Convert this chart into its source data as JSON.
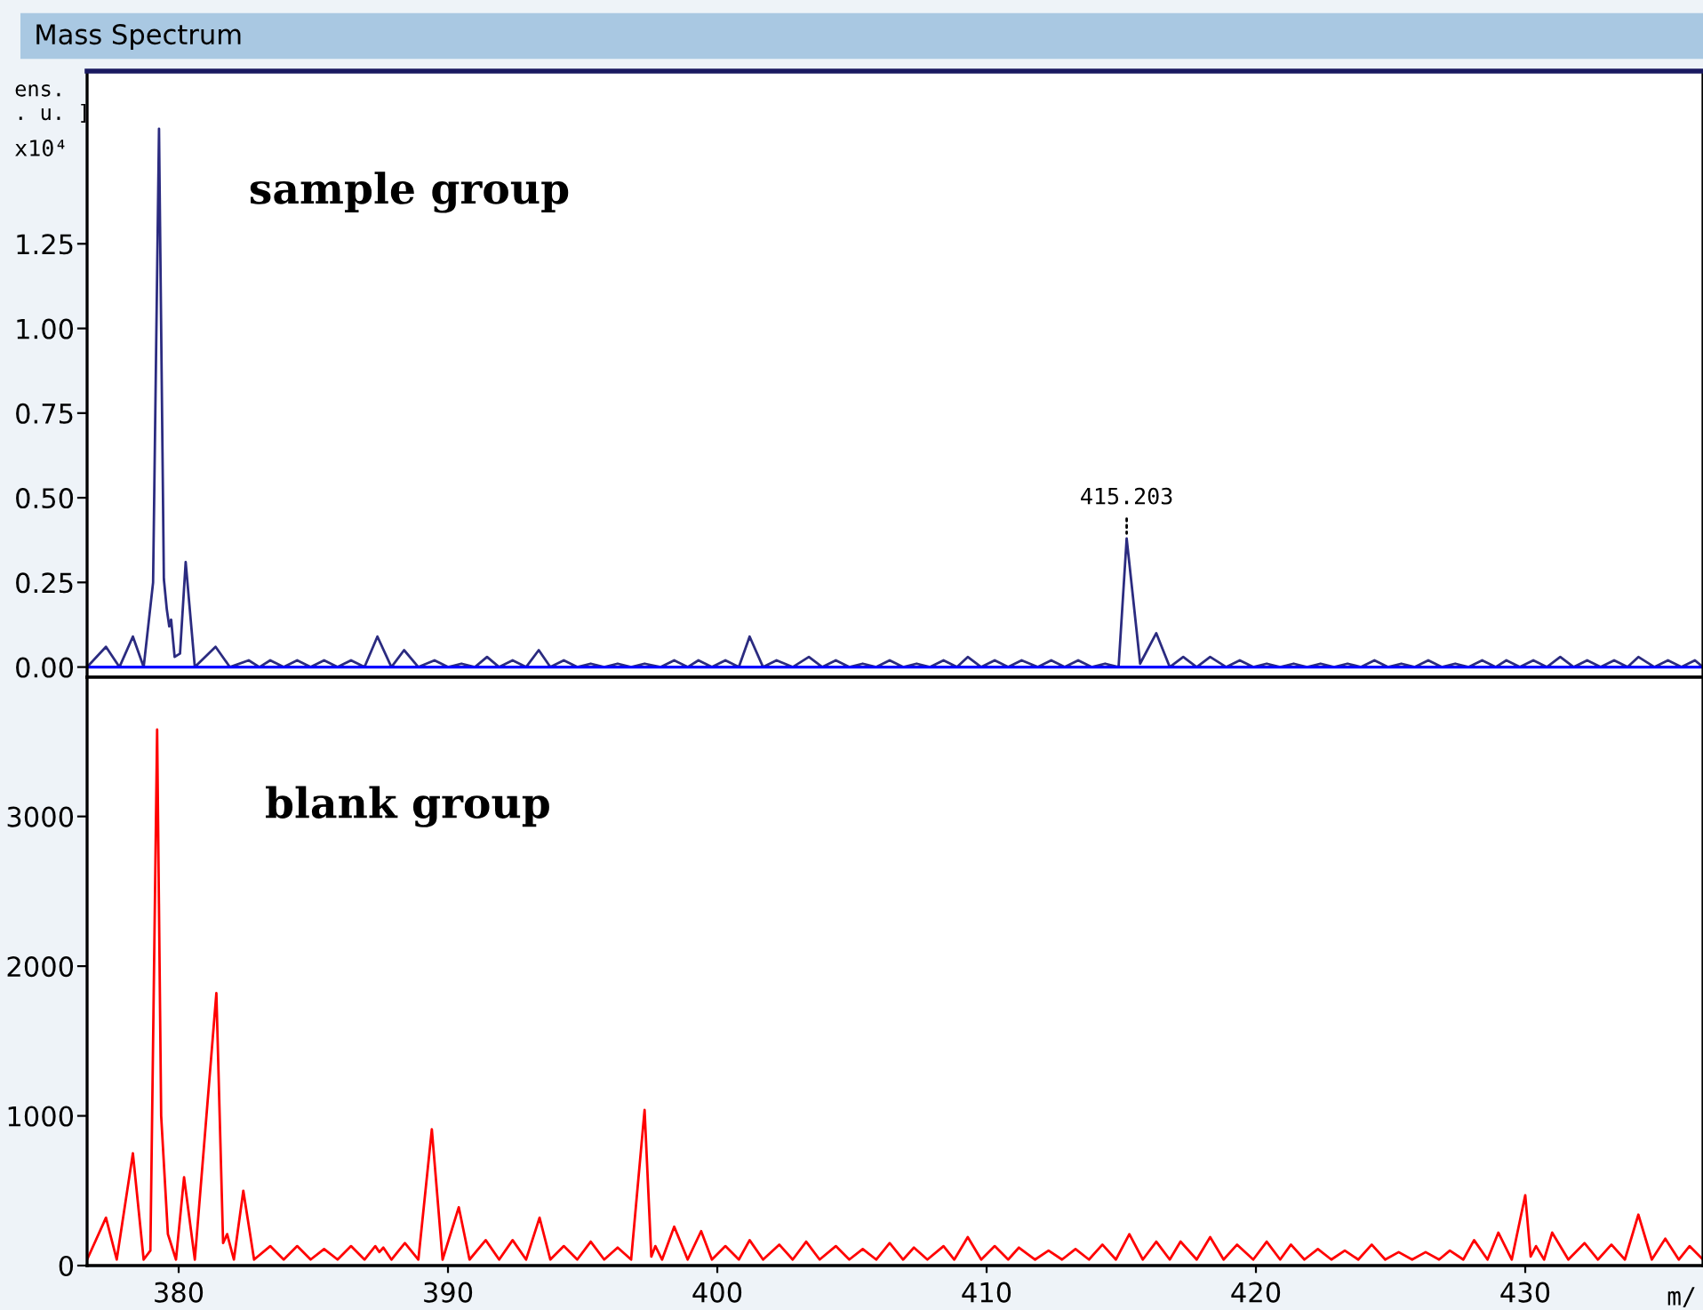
{
  "chart_data": [
    {
      "type": "line",
      "title": "Mass Spectrum",
      "ylabel": "ens.\n. u. ]",
      "annotations": [
        "sample group",
        "x10⁴",
        {
          "text": "415.203",
          "x": 415.2,
          "y": 0.38
        }
      ],
      "xlim": [
        376.6,
        436.6
      ],
      "ylim": [
        -0.03,
        1.76
      ],
      "yticks": [
        {
          "value": 0,
          "label": "0.00"
        },
        {
          "value": 0.25,
          "label": "0.25"
        },
        {
          "value": 0.5,
          "label": "0.50"
        },
        {
          "value": 0.75,
          "label": "0.75"
        },
        {
          "value": 1,
          "label": "1.00"
        },
        {
          "value": 1.25,
          "label": "1.25"
        }
      ],
      "tick_labels": "y",
      "grid": false,
      "legend": false,
      "ref_lines": [
        {
          "axis": "y",
          "value": 0,
          "color": "#0000ff"
        }
      ],
      "series": [
        {
          "color": "#2b2b80",
          "x": [
            376.6,
            377.3,
            377.8,
            378.3,
            378.7,
            379.05,
            379.27,
            379.45,
            379.56,
            379.65,
            379.72,
            379.85,
            380.05,
            380.26,
            380.6,
            381.37,
            381.9,
            382.6,
            383.0,
            383.4,
            383.9,
            384.4,
            384.9,
            385.4,
            385.9,
            386.4,
            386.9,
            387.38,
            387.9,
            388.37,
            388.9,
            389.5,
            390.0,
            390.5,
            391.0,
            391.45,
            391.9,
            392.4,
            392.9,
            393.37,
            393.8,
            394.3,
            394.8,
            395.3,
            395.8,
            396.3,
            396.8,
            397.3,
            397.9,
            398.4,
            398.9,
            399.3,
            399.8,
            400.3,
            400.8,
            401.2,
            401.7,
            402.2,
            402.8,
            403.4,
            403.9,
            404.4,
            404.9,
            405.4,
            405.9,
            406.4,
            406.9,
            407.4,
            407.9,
            408.4,
            408.9,
            409.3,
            409.8,
            410.3,
            410.8,
            411.3,
            411.9,
            412.4,
            412.9,
            413.4,
            413.9,
            414.4,
            414.9,
            415.2,
            415.7,
            416.3,
            416.8,
            417.3,
            417.8,
            418.3,
            418.9,
            419.4,
            419.9,
            420.4,
            420.9,
            421.4,
            421.9,
            422.4,
            422.9,
            423.4,
            423.9,
            424.4,
            424.9,
            425.4,
            425.9,
            426.4,
            426.9,
            427.4,
            427.9,
            428.4,
            428.9,
            429.3,
            429.8,
            430.3,
            430.8,
            431.3,
            431.8,
            432.3,
            432.8,
            433.3,
            433.8,
            434.2,
            434.8,
            435.3,
            435.8,
            436.3,
            436.6
          ],
          "values": [
            0,
            0.06,
            0,
            0.09,
            0,
            0.25,
            1.59,
            0.26,
            0.17,
            0.12,
            0.14,
            0.03,
            0.04,
            0.31,
            0,
            0.06,
            0,
            0.02,
            0,
            0.02,
            0,
            0.02,
            0,
            0.02,
            0,
            0.02,
            0,
            0.09,
            0,
            0.05,
            0,
            0.02,
            0,
            0.01,
            0,
            0.03,
            0,
            0.02,
            0,
            0.05,
            0,
            0.02,
            0,
            0.01,
            0,
            0.01,
            0,
            0.01,
            0,
            0.02,
            0,
            0.02,
            0,
            0.02,
            0,
            0.09,
            0,
            0.02,
            0,
            0.03,
            0,
            0.02,
            0,
            0.01,
            0,
            0.02,
            0,
            0.01,
            0,
            0.02,
            0,
            0.03,
            0,
            0.02,
            0,
            0.02,
            0,
            0.02,
            0,
            0.02,
            0,
            0.01,
            0,
            0.38,
            0.01,
            0.1,
            0,
            0.03,
            0,
            0.03,
            0,
            0.02,
            0,
            0.01,
            0,
            0.01,
            0,
            0.01,
            0,
            0.01,
            0,
            0.02,
            0,
            0.01,
            0,
            0.02,
            0,
            0.01,
            0,
            0.02,
            0,
            0.02,
            0,
            0.02,
            0,
            0.03,
            0,
            0.02,
            0,
            0.02,
            0,
            0.03,
            0,
            0.02,
            0,
            0.02,
            0
          ]
        }
      ]
    },
    {
      "type": "line",
      "xlabel": "m/",
      "annotations": [
        "blank group"
      ],
      "xlim": [
        376.6,
        436.6
      ],
      "ylim": [
        0,
        3930
      ],
      "xticks": [
        380,
        390,
        400,
        410,
        420,
        430
      ],
      "yticks": [
        {
          "value": 0,
          "label": "0"
        },
        1000,
        2000,
        3000
      ],
      "grid": false,
      "legend": false,
      "series": [
        {
          "color": "#ff0000",
          "x": [
            376.6,
            377.3,
            377.7,
            378.3,
            378.7,
            378.95,
            379.2,
            379.35,
            379.6,
            379.9,
            380.2,
            380.6,
            381.4,
            381.65,
            381.8,
            382.05,
            382.4,
            382.8,
            383.4,
            383.9,
            384.4,
            384.9,
            385.4,
            385.9,
            386.4,
            386.9,
            387.3,
            387.45,
            387.6,
            387.9,
            388.4,
            388.9,
            389.4,
            389.8,
            390.4,
            390.8,
            391.4,
            391.9,
            392.4,
            392.9,
            393.4,
            393.8,
            394.3,
            394.8,
            395.3,
            395.8,
            396.3,
            396.8,
            397.3,
            397.55,
            397.7,
            397.95,
            398.4,
            398.9,
            399.4,
            399.8,
            400.3,
            400.8,
            401.2,
            401.7,
            402.3,
            402.8,
            403.3,
            403.8,
            404.4,
            404.9,
            405.4,
            405.9,
            406.4,
            406.9,
            407.3,
            407.8,
            408.4,
            408.8,
            409.3,
            409.8,
            410.3,
            410.8,
            411.2,
            411.8,
            412.3,
            412.8,
            413.3,
            413.8,
            414.3,
            414.8,
            415.3,
            415.8,
            416.3,
            416.8,
            417.2,
            417.8,
            418.3,
            418.8,
            419.3,
            419.9,
            420.4,
            420.9,
            421.3,
            421.8,
            422.3,
            422.8,
            423.3,
            423.8,
            424.3,
            424.8,
            425.3,
            425.8,
            426.3,
            426.8,
            427.2,
            427.7,
            428.1,
            428.6,
            429.0,
            429.5,
            430.0,
            430.2,
            430.4,
            430.7,
            431.0,
            431.6,
            432.2,
            432.7,
            433.2,
            433.7,
            434.2,
            434.7,
            435.2,
            435.7,
            436.1,
            436.6
          ],
          "values": [
            40,
            320,
            40,
            750,
            40,
            100,
            3580,
            1000,
            210,
            40,
            590,
            40,
            1820,
            150,
            210,
            40,
            500,
            40,
            130,
            40,
            130,
            40,
            110,
            40,
            130,
            40,
            130,
            90,
            120,
            40,
            150,
            40,
            910,
            40,
            390,
            40,
            170,
            40,
            170,
            40,
            320,
            40,
            130,
            40,
            160,
            40,
            120,
            40,
            1040,
            60,
            130,
            40,
            260,
            40,
            230,
            40,
            130,
            40,
            170,
            40,
            140,
            40,
            160,
            40,
            130,
            40,
            110,
            40,
            150,
            40,
            120,
            40,
            130,
            40,
            190,
            40,
            130,
            40,
            120,
            40,
            100,
            40,
            110,
            40,
            140,
            40,
            210,
            40,
            160,
            40,
            160,
            40,
            190,
            40,
            140,
            40,
            160,
            40,
            140,
            40,
            110,
            40,
            100,
            40,
            140,
            40,
            90,
            40,
            90,
            40,
            100,
            40,
            170,
            40,
            220,
            40,
            470,
            60,
            130,
            40,
            220,
            40,
            150,
            40,
            140,
            40,
            340,
            40,
            180,
            40,
            130,
            40
          ]
        }
      ]
    }
  ]
}
